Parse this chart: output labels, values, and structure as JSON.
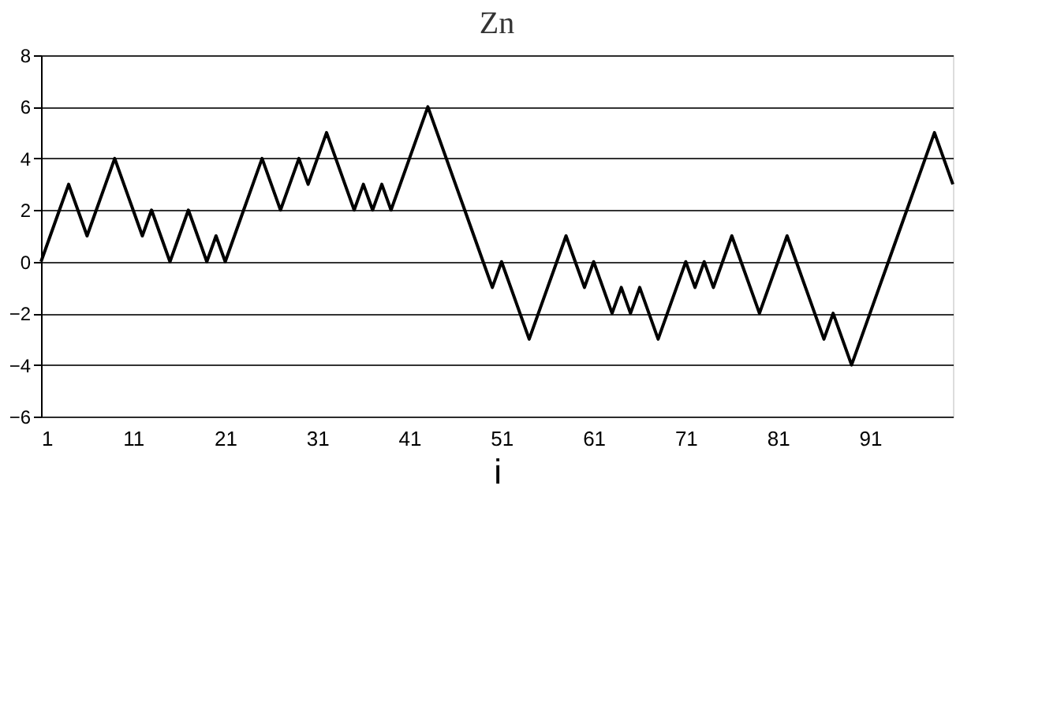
{
  "chart_data": {
    "type": "line",
    "title": "Zn",
    "xlabel": "i",
    "x": [
      1,
      2,
      3,
      4,
      5,
      6,
      7,
      8,
      9,
      10,
      11,
      12,
      13,
      14,
      15,
      16,
      17,
      18,
      19,
      20,
      21,
      22,
      23,
      24,
      25,
      26,
      27,
      28,
      29,
      30,
      31,
      32,
      33,
      34,
      35,
      36,
      37,
      38,
      39,
      40,
      41,
      42,
      43,
      44,
      45,
      46,
      47,
      48,
      49,
      50,
      51,
      52,
      53,
      54,
      55,
      56,
      57,
      58,
      59,
      60,
      61,
      62,
      63,
      64,
      65,
      66,
      67,
      68,
      69,
      70,
      71,
      72,
      73,
      74,
      75,
      76,
      77,
      78,
      79,
      80,
      81,
      82,
      83,
      84,
      85,
      86,
      87,
      88,
      89,
      90,
      91,
      92,
      93,
      94,
      95,
      96,
      97,
      98,
      99,
      100
    ],
    "series": [
      {
        "color": "#000000",
        "values": [
          0,
          1,
          2,
          3,
          2,
          1,
          2,
          3,
          4,
          3,
          2,
          1,
          2,
          1,
          0,
          1,
          2,
          1,
          0,
          1,
          0,
          1,
          2,
          3,
          4,
          3,
          2,
          3,
          4,
          3,
          4,
          5,
          4,
          3,
          2,
          3,
          2,
          3,
          2,
          3,
          4,
          5,
          6,
          5,
          4,
          3,
          2,
          1,
          0,
          -1,
          0,
          -1,
          -2,
          -3,
          -2,
          -1,
          0,
          1,
          0,
          -1,
          0,
          -1,
          -2,
          -1,
          -2,
          -1,
          -2,
          -3,
          -2,
          -1,
          0,
          -1,
          0,
          -1,
          0,
          1,
          0,
          -1,
          -2,
          -1,
          0,
          1,
          0,
          -1,
          -2,
          -3,
          -2,
          -3,
          -4,
          -3,
          -2,
          -1,
          0,
          1,
          2,
          3,
          4,
          5,
          4,
          3
        ]
      }
    ],
    "xlim": [
      1,
      100
    ],
    "xticks": [
      1,
      11,
      21,
      31,
      41,
      51,
      61,
      71,
      81,
      91
    ],
    "ylim": [
      -6,
      8
    ],
    "yticks": [
      -6,
      -4,
      -2,
      0,
      2,
      4,
      6,
      8
    ],
    "grid": "y",
    "legend": false,
    "marker": "none",
    "line_style": "solid"
  }
}
